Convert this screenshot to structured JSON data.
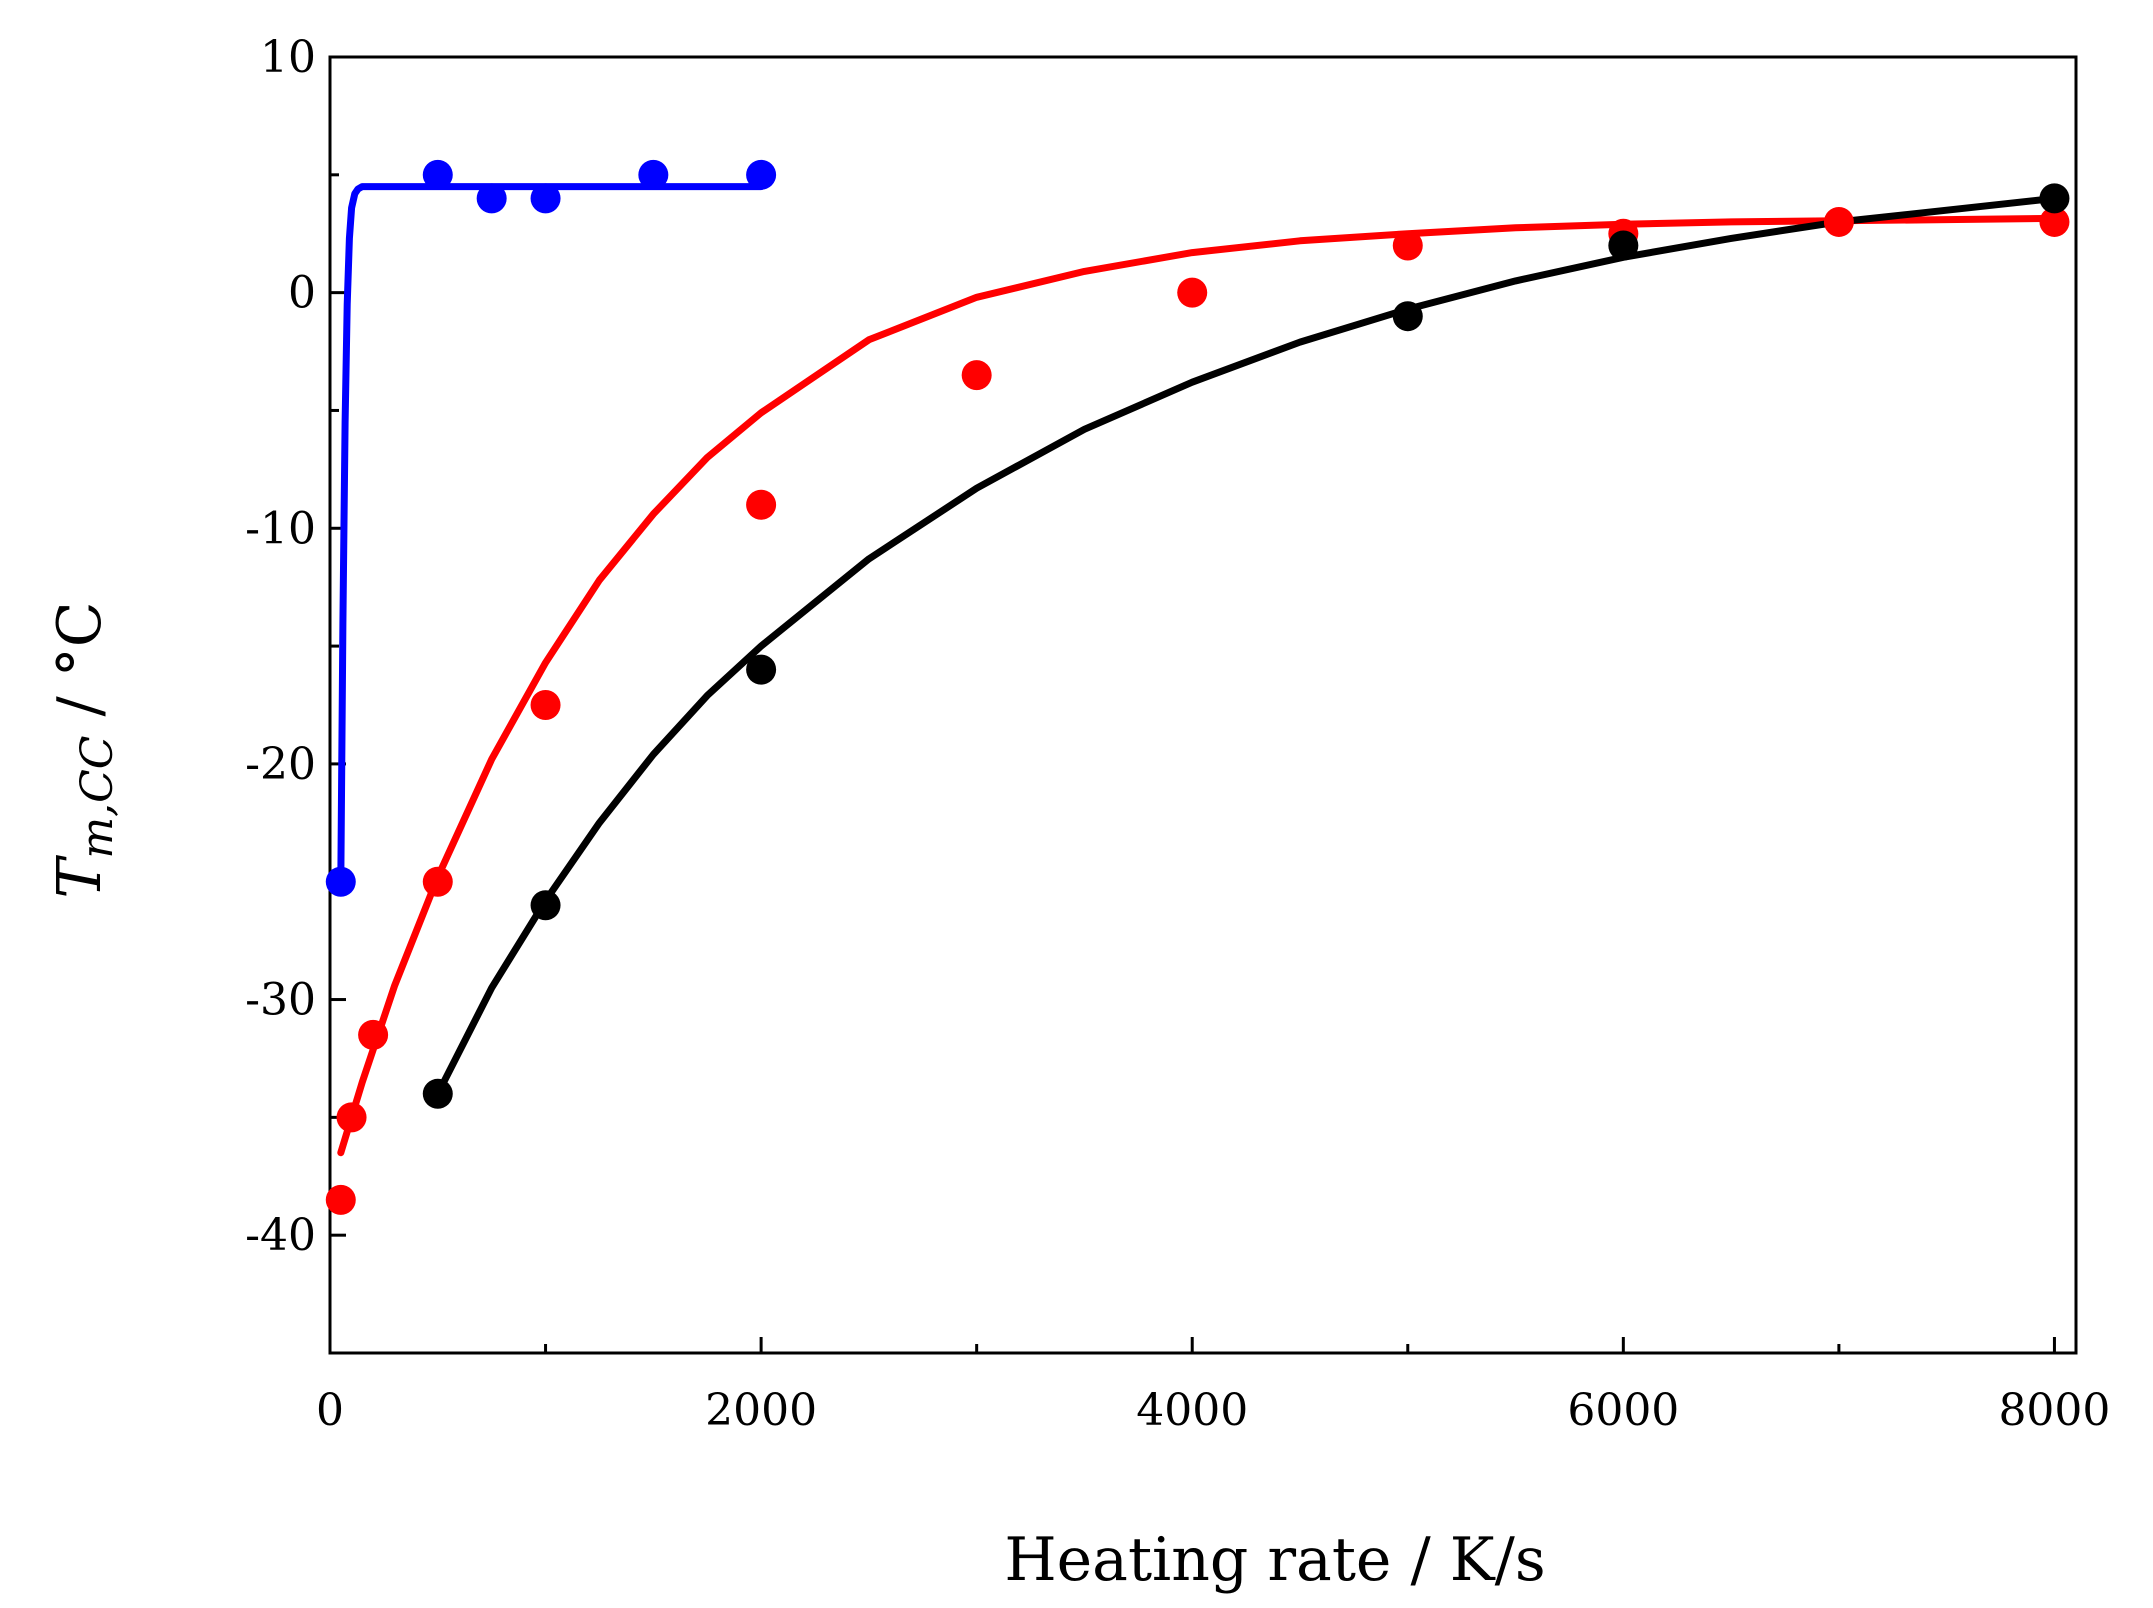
{
  "chart_data": {
    "type": "scatter",
    "title": "",
    "xlabel": "Heating rate / K/s",
    "ylabel": {
      "main": "T",
      "subscript": "m,CC",
      "unit": " / °C"
    },
    "xlim": [
      0,
      8100
    ],
    "ylim": [
      -45,
      10
    ],
    "x_ticks": [
      0,
      2000,
      4000,
      6000,
      8000
    ],
    "x_tick_labels": [
      "0",
      "2000",
      "4000",
      "6000",
      "8000"
    ],
    "y_ticks": [
      10,
      0,
      -10,
      -20,
      -30,
      -40
    ],
    "y_tick_labels": [
      "10",
      "0",
      "-10",
      "-20",
      "-30",
      "-40"
    ],
    "grid": false,
    "series": [
      {
        "name": "blue",
        "color": "#0000ff",
        "x": [
          50,
          500,
          750,
          1000,
          1500,
          2000
        ],
        "y": [
          -25,
          5,
          4,
          4,
          5,
          5
        ],
        "fit_x": [
          50,
          60,
          70,
          80,
          90,
          100,
          115,
          130,
          150,
          175,
          200,
          250,
          300,
          500,
          1000,
          1500,
          2000
        ],
        "fit_y": [
          -25,
          -14,
          -5.5,
          -0.5,
          2.3,
          3.6,
          4.2,
          4.4,
          4.5,
          4.5,
          4.5,
          4.5,
          4.5,
          4.5,
          4.5,
          4.5,
          4.5
        ]
      },
      {
        "name": "red",
        "color": "#ff0000",
        "x": [
          50,
          100,
          200,
          500,
          1000,
          2000,
          3000,
          4000,
          5000,
          6000,
          7000,
          8000
        ],
        "y": [
          -38.5,
          -35,
          -31.5,
          -25,
          -17.5,
          -9,
          -3.5,
          0,
          2,
          2.5,
          3,
          3
        ],
        "fit_x": [
          50,
          150,
          300,
          500,
          750,
          1000,
          1250,
          1500,
          1750,
          2000,
          2500,
          3000,
          3500,
          4000,
          4500,
          5000,
          5500,
          6000,
          6500,
          7000,
          7500,
          8000
        ],
        "fit_y": [
          -36.5,
          -33.5,
          -29.4,
          -24.8,
          -19.8,
          -15.7,
          -12.2,
          -9.4,
          -7.0,
          -5.1,
          -2.0,
          -0.2,
          0.9,
          1.7,
          2.2,
          2.5,
          2.75,
          2.9,
          3.0,
          3.05,
          3.1,
          3.15
        ]
      },
      {
        "name": "black",
        "color": "#000000",
        "x": [
          500,
          1000,
          2000,
          5000,
          6000,
          8000
        ],
        "y": [
          -34,
          -26,
          -16,
          -1,
          2,
          4
        ],
        "fit_x": [
          500,
          750,
          1000,
          1250,
          1500,
          1750,
          2000,
          2500,
          3000,
          3500,
          4000,
          4500,
          5000,
          5500,
          6000,
          6500,
          7000,
          7500,
          8000
        ],
        "fit_y": [
          -34,
          -29.5,
          -25.8,
          -22.5,
          -19.6,
          -17.1,
          -15.0,
          -11.3,
          -8.3,
          -5.8,
          -3.8,
          -2.1,
          -0.7,
          0.5,
          1.5,
          2.3,
          3.0,
          3.5,
          4.0
        ]
      }
    ]
  }
}
